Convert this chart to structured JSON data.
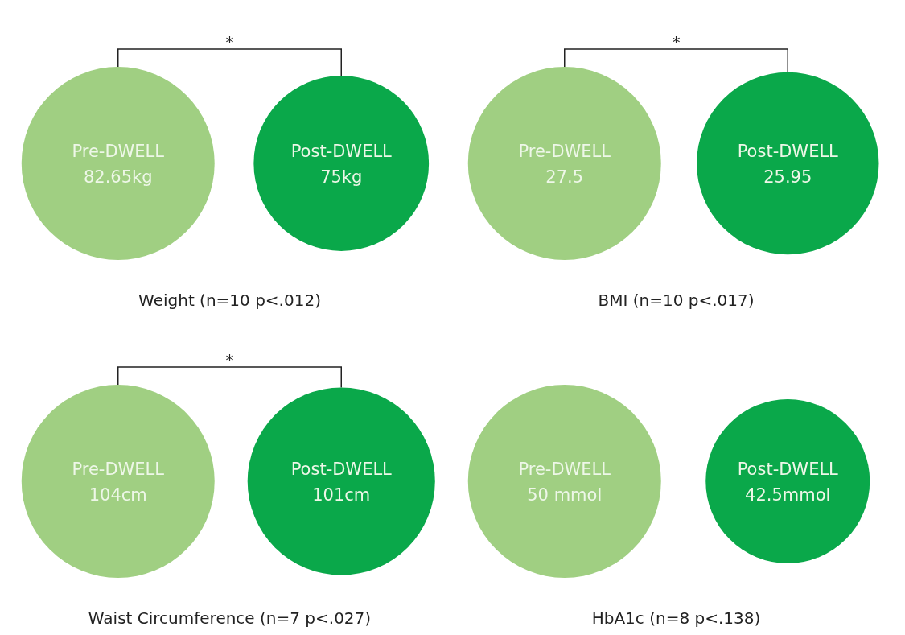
{
  "chart_data": [
    {
      "type": "other",
      "title": "Weight (n=10 p<.012)",
      "categories": [
        "Pre-DWELL",
        "Post-DWELL"
      ],
      "values": [
        82.65,
        75
      ],
      "value_labels": [
        "82.65kg",
        "75kg"
      ],
      "colors": [
        "#a0cf82",
        "#0aa84a"
      ],
      "annotations": [
        "*"
      ]
    },
    {
      "type": "other",
      "title": "BMI (n=10 p<.017)",
      "categories": [
        "Pre-DWELL",
        "Post-DWELL"
      ],
      "values": [
        27.5,
        25.95
      ],
      "value_labels": [
        "27.5",
        "25.95"
      ],
      "colors": [
        "#a0cf82",
        "#0aa84a"
      ],
      "annotations": [
        "*"
      ]
    },
    {
      "type": "other",
      "title": "Waist Circumference (n=7 p<.027)",
      "categories": [
        "Pre-DWELL",
        "Post-DWELL"
      ],
      "values": [
        104,
        101
      ],
      "value_labels": [
        "104cm",
        "101cm"
      ],
      "colors": [
        "#a0cf82",
        "#0aa84a"
      ],
      "annotations": [
        "*"
      ]
    },
    {
      "type": "other",
      "title": "HbA1c (n=8 p<.138)",
      "categories": [
        "Pre-DWELL",
        "Post-DWELL"
      ],
      "values": [
        50,
        42.5
      ],
      "value_labels": [
        "50 mmol",
        "42.5mmol"
      ],
      "colors": [
        "#a0cf82",
        "#0aa84a"
      ]
    }
  ]
}
